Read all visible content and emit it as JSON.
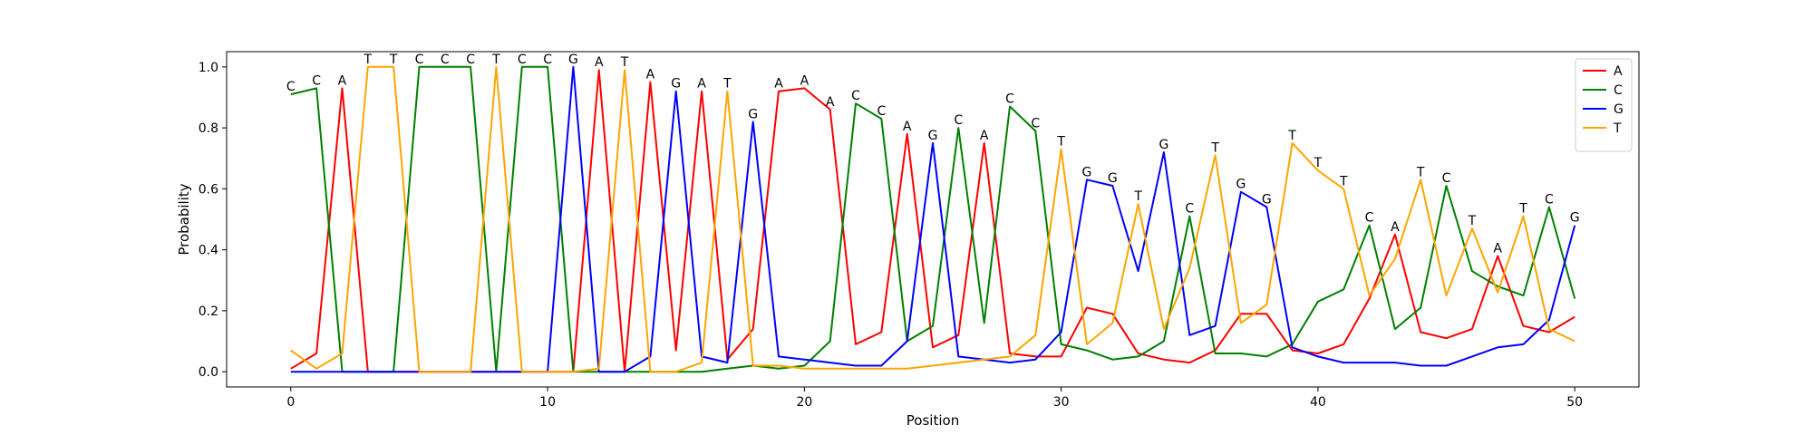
{
  "chart_data": {
    "type": "line",
    "title": "",
    "xlabel": "Position",
    "ylabel": "Probability",
    "xlim": [
      -2.5,
      52.5
    ],
    "ylim": [
      -0.05,
      1.05
    ],
    "xticks": [
      0,
      10,
      20,
      30,
      40,
      50
    ],
    "yticks": [
      0.0,
      0.2,
      0.4,
      0.6,
      0.8,
      1.0
    ],
    "ytick_labels": [
      "0.0",
      "0.2",
      "0.4",
      "0.6",
      "0.8",
      "1.0"
    ],
    "grid": false,
    "legend_position": "top-right",
    "x": [
      0,
      1,
      2,
      3,
      4,
      5,
      6,
      7,
      8,
      9,
      10,
      11,
      12,
      13,
      14,
      15,
      16,
      17,
      18,
      19,
      20,
      21,
      22,
      23,
      24,
      25,
      26,
      27,
      28,
      29,
      30,
      31,
      32,
      33,
      34,
      35,
      36,
      37,
      38,
      39,
      40,
      41,
      42,
      43,
      44,
      45,
      46,
      47,
      48,
      49,
      50
    ],
    "series": [
      {
        "name": "A",
        "color": "#ff0000",
        "values": [
          0.01,
          0.06,
          0.93,
          0.0,
          0.0,
          0.0,
          0.0,
          0.0,
          0.0,
          0.0,
          0.0,
          0.0,
          0.99,
          0.0,
          0.95,
          0.07,
          0.92,
          0.04,
          0.14,
          0.92,
          0.93,
          0.86,
          0.09,
          0.13,
          0.78,
          0.08,
          0.12,
          0.75,
          0.06,
          0.05,
          0.05,
          0.21,
          0.19,
          0.06,
          0.04,
          0.03,
          0.07,
          0.19,
          0.19,
          0.07,
          0.06,
          0.09,
          0.24,
          0.45,
          0.13,
          0.11,
          0.14,
          0.38,
          0.15,
          0.13,
          0.18
        ]
      },
      {
        "name": "C",
        "color": "#008000",
        "values": [
          0.91,
          0.93,
          0.0,
          0.0,
          0.0,
          1.0,
          1.0,
          1.0,
          0.0,
          1.0,
          1.0,
          0.0,
          0.0,
          0.0,
          0.0,
          0.0,
          0.0,
          0.01,
          0.02,
          0.01,
          0.02,
          0.1,
          0.88,
          0.83,
          0.1,
          0.15,
          0.8,
          0.16,
          0.87,
          0.79,
          0.09,
          0.07,
          0.04,
          0.05,
          0.1,
          0.51,
          0.06,
          0.06,
          0.05,
          0.09,
          0.23,
          0.27,
          0.48,
          0.14,
          0.21,
          0.61,
          0.33,
          0.28,
          0.25,
          0.54,
          0.24
        ]
      },
      {
        "name": "G",
        "color": "#0000ff",
        "values": [
          0.0,
          0.0,
          0.0,
          0.0,
          0.0,
          0.0,
          0.0,
          0.0,
          0.0,
          0.0,
          0.0,
          1.0,
          0.0,
          0.0,
          0.05,
          0.92,
          0.05,
          0.03,
          0.82,
          0.05,
          0.04,
          0.03,
          0.02,
          0.02,
          0.1,
          0.75,
          0.05,
          0.04,
          0.03,
          0.04,
          0.13,
          0.63,
          0.61,
          0.33,
          0.72,
          0.12,
          0.15,
          0.59,
          0.54,
          0.08,
          0.05,
          0.03,
          0.03,
          0.03,
          0.02,
          0.02,
          0.05,
          0.08,
          0.09,
          0.17,
          0.48
        ]
      },
      {
        "name": "T",
        "color": "#ffa500",
        "values": [
          0.07,
          0.01,
          0.06,
          1.0,
          1.0,
          0.0,
          0.0,
          0.0,
          1.0,
          0.0,
          0.0,
          0.0,
          0.01,
          0.99,
          0.0,
          0.0,
          0.03,
          0.92,
          0.02,
          0.02,
          0.01,
          0.01,
          0.01,
          0.01,
          0.01,
          0.02,
          0.03,
          0.04,
          0.05,
          0.12,
          0.73,
          0.09,
          0.16,
          0.55,
          0.14,
          0.34,
          0.71,
          0.16,
          0.22,
          0.75,
          0.66,
          0.6,
          0.25,
          0.37,
          0.63,
          0.25,
          0.47,
          0.26,
          0.51,
          0.14,
          0.1
        ]
      }
    ],
    "annotations": [
      {
        "x": 0,
        "y": 0.91,
        "text": "C"
      },
      {
        "x": 1,
        "y": 0.93,
        "text": "C"
      },
      {
        "x": 2,
        "y": 0.93,
        "text": "A"
      },
      {
        "x": 3,
        "y": 1.0,
        "text": "T"
      },
      {
        "x": 4,
        "y": 1.0,
        "text": "T"
      },
      {
        "x": 5,
        "y": 1.0,
        "text": "C"
      },
      {
        "x": 6,
        "y": 1.0,
        "text": "C"
      },
      {
        "x": 7,
        "y": 1.0,
        "text": "C"
      },
      {
        "x": 8,
        "y": 1.0,
        "text": "T"
      },
      {
        "x": 9,
        "y": 1.0,
        "text": "C"
      },
      {
        "x": 10,
        "y": 1.0,
        "text": "C"
      },
      {
        "x": 11,
        "y": 1.0,
        "text": "G"
      },
      {
        "x": 12,
        "y": 0.99,
        "text": "A"
      },
      {
        "x": 13,
        "y": 0.99,
        "text": "T"
      },
      {
        "x": 14,
        "y": 0.95,
        "text": "A"
      },
      {
        "x": 15,
        "y": 0.92,
        "text": "G"
      },
      {
        "x": 16,
        "y": 0.92,
        "text": "A"
      },
      {
        "x": 17,
        "y": 0.92,
        "text": "T"
      },
      {
        "x": 18,
        "y": 0.82,
        "text": "G"
      },
      {
        "x": 19,
        "y": 0.92,
        "text": "A"
      },
      {
        "x": 20,
        "y": 0.93,
        "text": "A"
      },
      {
        "x": 21,
        "y": 0.86,
        "text": "A"
      },
      {
        "x": 22,
        "y": 0.88,
        "text": "C"
      },
      {
        "x": 23,
        "y": 0.83,
        "text": "C"
      },
      {
        "x": 24,
        "y": 0.78,
        "text": "A"
      },
      {
        "x": 25,
        "y": 0.75,
        "text": "G"
      },
      {
        "x": 26,
        "y": 0.8,
        "text": "C"
      },
      {
        "x": 27,
        "y": 0.75,
        "text": "A"
      },
      {
        "x": 28,
        "y": 0.87,
        "text": "C"
      },
      {
        "x": 29,
        "y": 0.79,
        "text": "C"
      },
      {
        "x": 30,
        "y": 0.73,
        "text": "T"
      },
      {
        "x": 31,
        "y": 0.63,
        "text": "G"
      },
      {
        "x": 32,
        "y": 0.61,
        "text": "G"
      },
      {
        "x": 33,
        "y": 0.55,
        "text": "T"
      },
      {
        "x": 34,
        "y": 0.72,
        "text": "G"
      },
      {
        "x": 35,
        "y": 0.51,
        "text": "C"
      },
      {
        "x": 36,
        "y": 0.71,
        "text": "T"
      },
      {
        "x": 37,
        "y": 0.59,
        "text": "G"
      },
      {
        "x": 38,
        "y": 0.54,
        "text": "G"
      },
      {
        "x": 39,
        "y": 0.75,
        "text": "T"
      },
      {
        "x": 40,
        "y": 0.66,
        "text": "T"
      },
      {
        "x": 41,
        "y": 0.6,
        "text": "T"
      },
      {
        "x": 42,
        "y": 0.48,
        "text": "C"
      },
      {
        "x": 43,
        "y": 0.45,
        "text": "A"
      },
      {
        "x": 44,
        "y": 0.63,
        "text": "T"
      },
      {
        "x": 45,
        "y": 0.61,
        "text": "C"
      },
      {
        "x": 46,
        "y": 0.47,
        "text": "T"
      },
      {
        "x": 47,
        "y": 0.38,
        "text": "A"
      },
      {
        "x": 48,
        "y": 0.51,
        "text": "T"
      },
      {
        "x": 49,
        "y": 0.54,
        "text": "C"
      },
      {
        "x": 50,
        "y": 0.48,
        "text": "G"
      }
    ]
  }
}
